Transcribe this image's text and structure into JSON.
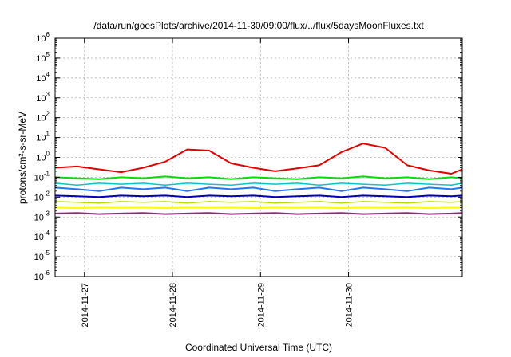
{
  "chart_data": {
    "type": "line",
    "title": "/data/run/goesPlots/archive/2014-11-30/09:00/flux/../flux/5daysMoonFluxes.txt",
    "xlabel": "Coordinated Universal Time (UTC)",
    "ylabel": "protons/cm²-s-sr-MeV",
    "yscale": "log",
    "ylim": [
      1e-06,
      1000000.0
    ],
    "xlim": [
      "2014-11-26T16:00",
      "2014-12-01T07:00"
    ],
    "grid": true,
    "legend": "none",
    "y_ticks": [
      {
        "base": "10",
        "exp": "-6",
        "value": 1e-06
      },
      {
        "base": "10",
        "exp": "-5",
        "value": 1e-05
      },
      {
        "base": "10",
        "exp": "-4",
        "value": 0.0001
      },
      {
        "base": "10",
        "exp": "-3",
        "value": 0.001
      },
      {
        "base": "10",
        "exp": "-2",
        "value": 0.01
      },
      {
        "base": "10",
        "exp": "-1",
        "value": 0.1
      },
      {
        "base": "10",
        "exp": "0",
        "value": 1.0
      },
      {
        "base": "10",
        "exp": "1",
        "value": 10.0
      },
      {
        "base": "10",
        "exp": "2",
        "value": 100.0
      },
      {
        "base": "10",
        "exp": "3",
        "value": 1000.0
      },
      {
        "base": "10",
        "exp": "4",
        "value": 10000.0
      },
      {
        "base": "10",
        "exp": "5",
        "value": 100000.0
      },
      {
        "base": "10",
        "exp": "6",
        "value": 1000000.0
      }
    ],
    "x_ticks": [
      {
        "label": "2014-11-27",
        "value": "2014-11-27T00:00"
      },
      {
        "label": "2014-11-28",
        "value": "2014-11-28T00:00"
      },
      {
        "label": "2014-11-29",
        "value": "2014-11-29T00:00"
      },
      {
        "label": "2014-11-30",
        "value": "2014-11-30T00:00"
      }
    ],
    "x": [
      "2014-11-26T16:00",
      "2014-11-26T22:00",
      "2014-11-27T04:00",
      "2014-11-27T10:00",
      "2014-11-27T16:00",
      "2014-11-27T22:00",
      "2014-11-28T04:00",
      "2014-11-28T10:00",
      "2014-11-28T16:00",
      "2014-11-28T22:00",
      "2014-11-29T04:00",
      "2014-11-29T10:00",
      "2014-11-29T16:00",
      "2014-11-29T22:00",
      "2014-11-30T04:00",
      "2014-11-30T10:00",
      "2014-11-30T16:00",
      "2014-11-30T22:00",
      "2014-12-01T04:00",
      "2014-12-01T07:00"
    ],
    "series": [
      {
        "color": "#e00000",
        "width": 2,
        "values": [
          0.3,
          0.35,
          0.25,
          0.18,
          0.3,
          0.6,
          2.5,
          2.2,
          0.5,
          0.3,
          0.2,
          0.28,
          0.4,
          1.8,
          5.0,
          3.0,
          0.4,
          0.22,
          0.15,
          0.25
        ]
      },
      {
        "color": "#00e000",
        "width": 2,
        "values": [
          0.1,
          0.09,
          0.08,
          0.1,
          0.09,
          0.11,
          0.09,
          0.1,
          0.08,
          0.1,
          0.09,
          0.08,
          0.1,
          0.09,
          0.11,
          0.09,
          0.1,
          0.08,
          0.1,
          0.09
        ]
      },
      {
        "color": "#00c8c8",
        "width": 1.5,
        "values": [
          0.05,
          0.04,
          0.05,
          0.045,
          0.05,
          0.04,
          0.05,
          0.045,
          0.04,
          0.05,
          0.045,
          0.05,
          0.04,
          0.05,
          0.045,
          0.04,
          0.05,
          0.045,
          0.04,
          0.05
        ]
      },
      {
        "color": "#1e78ff",
        "width": 2,
        "values": [
          0.03,
          0.025,
          0.02,
          0.03,
          0.025,
          0.03,
          0.02,
          0.03,
          0.025,
          0.03,
          0.02,
          0.025,
          0.03,
          0.02,
          0.03,
          0.025,
          0.02,
          0.03,
          0.025,
          0.03
        ]
      },
      {
        "color": "#0000b4",
        "width": 2,
        "values": [
          0.012,
          0.011,
          0.01,
          0.012,
          0.011,
          0.012,
          0.01,
          0.012,
          0.011,
          0.012,
          0.01,
          0.011,
          0.012,
          0.01,
          0.012,
          0.011,
          0.01,
          0.012,
          0.011,
          0.012
        ]
      },
      {
        "color": "#b4dc00",
        "width": 1.5,
        "values": [
          0.006,
          0.0055,
          0.005,
          0.006,
          0.0055,
          0.006,
          0.005,
          0.006,
          0.0055,
          0.006,
          0.005,
          0.0055,
          0.006,
          0.005,
          0.006,
          0.0055,
          0.005,
          0.006,
          0.0055,
          0.006
        ]
      },
      {
        "color": "#ffff00",
        "width": 2,
        "values": [
          0.003,
          0.0028,
          0.003,
          0.0029,
          0.003,
          0.0028,
          0.003,
          0.0029,
          0.003,
          0.0028,
          0.003,
          0.0029,
          0.003,
          0.0028,
          0.003,
          0.0029,
          0.003,
          0.0028,
          0.003,
          0.0029
        ]
      },
      {
        "color": "#8c2a7a",
        "width": 2,
        "values": [
          0.0015,
          0.0016,
          0.0014,
          0.0015,
          0.0016,
          0.0014,
          0.0015,
          0.0016,
          0.0014,
          0.0015,
          0.0016,
          0.0014,
          0.0015,
          0.0016,
          0.0014,
          0.0015,
          0.0016,
          0.0014,
          0.0015,
          0.0016
        ]
      }
    ]
  }
}
